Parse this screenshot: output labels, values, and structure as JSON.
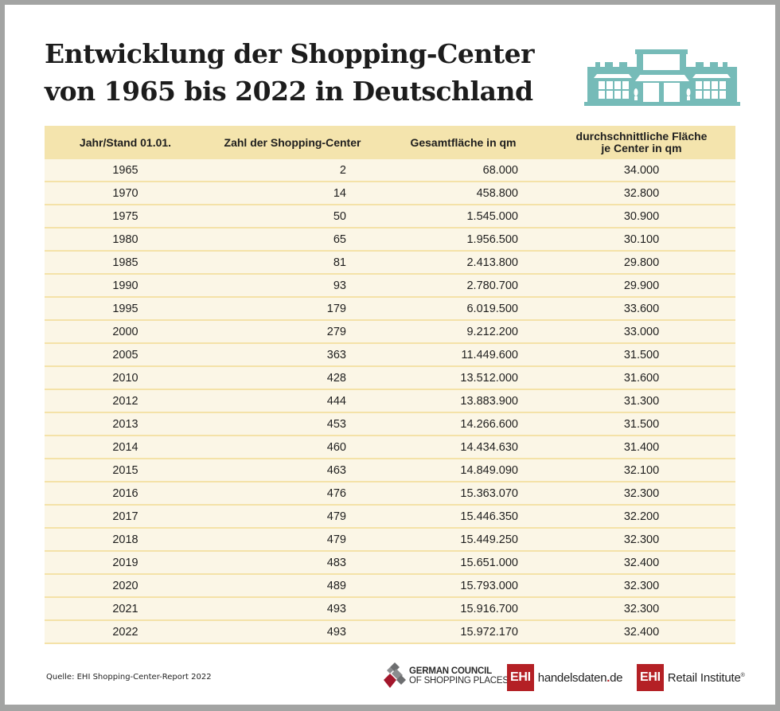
{
  "title": {
    "line1": "Entwicklung der Shopping-Center",
    "line2": "von 1965 bis 2022 in Deutschland"
  },
  "header_icon": "shopping-center-building-icon",
  "colors": {
    "header_bg": "#f4e4ad",
    "row_bg": "#fbf6e6",
    "row_border": "#f4e2a8",
    "icon": "#76bbb8",
    "ehi_red": "#b42025",
    "frame": "#a3a4a3"
  },
  "table": {
    "columns": [
      "Jahr/Stand 01.01.",
      "Zahl der Shopping-Center",
      "Gesamtfläche in qm",
      "durchschnittliche Fläche je Center in qm"
    ],
    "column3_line1": "durchschnittliche Fläche",
    "column3_line2": "je Center in qm",
    "rows": [
      [
        "1965",
        "2",
        "68.000",
        "34.000"
      ],
      [
        "1970",
        "14",
        "458.800",
        "32.800"
      ],
      [
        "1975",
        "50",
        "1.545.000",
        "30.900"
      ],
      [
        "1980",
        "65",
        "1.956.500",
        "30.100"
      ],
      [
        "1985",
        "81",
        "2.413.800",
        "29.800"
      ],
      [
        "1990",
        "93",
        "2.780.700",
        "29.900"
      ],
      [
        "1995",
        "179",
        "6.019.500",
        "33.600"
      ],
      [
        "2000",
        "279",
        "9.212.200",
        "33.000"
      ],
      [
        "2005",
        "363",
        "11.449.600",
        "31.500"
      ],
      [
        "2010",
        "428",
        "13.512.000",
        "31.600"
      ],
      [
        "2012",
        "444",
        "13.883.900",
        "31.300"
      ],
      [
        "2013",
        "453",
        "14.266.600",
        "31.500"
      ],
      [
        "2014",
        "460",
        "14.434.630",
        "31.400"
      ],
      [
        "2015",
        "463",
        "14.849.090",
        "32.100"
      ],
      [
        "2016",
        "476",
        "15.363.070",
        "32.300"
      ],
      [
        "2017",
        "479",
        "15.446.350",
        "32.200"
      ],
      [
        "2018",
        "479",
        "15.449.250",
        "32.300"
      ],
      [
        "2019",
        "483",
        "15.651.000",
        "32.400"
      ],
      [
        "2020",
        "489",
        "15.793.000",
        "32.300"
      ],
      [
        "2021",
        "493",
        "15.916.700",
        "32.300"
      ],
      [
        "2022",
        "493",
        "15.972.170",
        "32.400"
      ]
    ]
  },
  "footer": {
    "source": "Quelle: EHI Shopping-Center-Report 2022",
    "logos": {
      "gcsp_line1": "GERMAN COUNCIL",
      "gcsp_line2": "OF SHOPPING PLACES",
      "ehi_mark": "EHI",
      "handelsdaten_name": "handelsdaten",
      "handelsdaten_dot": ".",
      "handelsdaten_tld": "de",
      "retail_name": "Retail Institute",
      "retail_reg": "®"
    }
  }
}
